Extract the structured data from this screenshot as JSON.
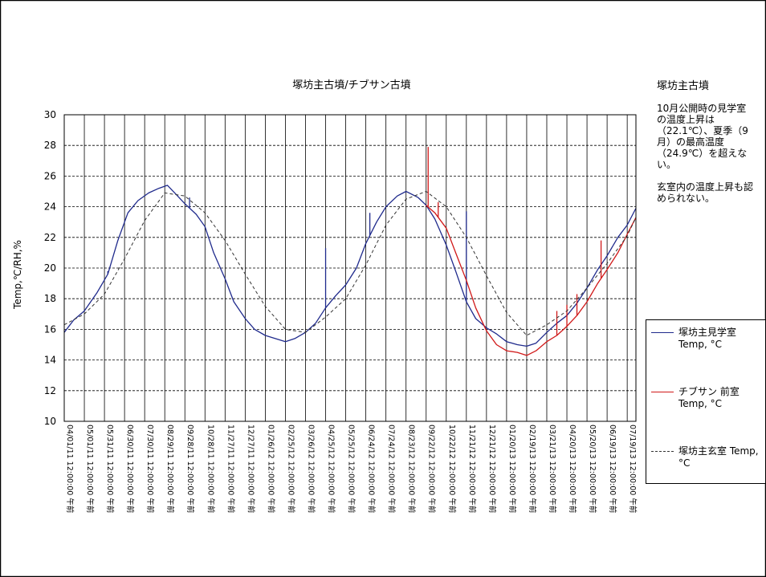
{
  "side_panel": {
    "title": "塚坊主古墳",
    "note": "10月公開時の見学室の温度上昇は（22.1℃）、夏季（9月）の最高温度（24.9℃）を超えない。\n\n玄室内の温度上昇も認められない。"
  },
  "colors": {
    "blue": "#1f2a8c",
    "red": "#d01818",
    "dashed": "#333333",
    "grid": "#000000"
  },
  "chart_data": {
    "type": "line",
    "title": "塚坊主古墳/チブサン古墳",
    "ylabel": "Temp,℃/RH,%",
    "xlabel": "",
    "ylim": [
      10,
      30
    ],
    "yticks": [
      10,
      12,
      14,
      16,
      18,
      20,
      22,
      24,
      26,
      28,
      30
    ],
    "grid": true,
    "legend_position": "right",
    "xrange": [
      "2011-04-01",
      "2013-08-01"
    ],
    "xtick_labels": [
      "04/01/11 12:00:00 午前",
      "05/01/11 12:00:00 午前",
      "05/31/11 12:00:00 午前",
      "06/30/11 12:00:00 午前",
      "07/30/11 12:00:00 午前",
      "08/29/11 12:00:00 午前",
      "09/28/11 12:00:00 午前",
      "10/28/11 12:00:00 午前",
      "11/27/11 12:00:00 午前",
      "12/27/11 12:00:00 午前",
      "01/26/12 12:00:00 午前",
      "02/25/12 12:00:00 午前",
      "03/26/12 12:00:00 午前",
      "04/25/12 12:00:00 午前",
      "05/25/12 12:00:00 午前",
      "06/24/12 12:00:00 午前",
      "07/24/12 12:00:00 午前",
      "08/23/12 12:00:00 午前",
      "09/22/12 12:00:00 午前",
      "10/22/12 12:00:00 午前",
      "11/21/12 12:00:00 午前",
      "12/21/12 12:00:00 午前",
      "01/20/13 12:00:00 午前",
      "02/19/13 12:00:00 午前",
      "03/21/13 12:00:00 午前",
      "04/20/13 12:00:00 午前",
      "05/20/13 12:00:00 午前",
      "06/19/13 12:00:00 午前",
      "07/19/13 12:00:00 午前"
    ],
    "xtick_dates": [
      "2011-04-01",
      "2011-05-01",
      "2011-05-31",
      "2011-06-30",
      "2011-07-30",
      "2011-08-29",
      "2011-09-28",
      "2011-10-28",
      "2011-11-27",
      "2011-12-27",
      "2012-01-26",
      "2012-02-25",
      "2012-03-26",
      "2012-04-25",
      "2012-05-25",
      "2012-06-24",
      "2012-07-24",
      "2012-08-23",
      "2012-09-22",
      "2012-10-22",
      "2012-11-21",
      "2012-12-21",
      "2013-01-20",
      "2013-02-19",
      "2013-03-21",
      "2013-04-20",
      "2013-05-20",
      "2013-06-19",
      "2013-07-19"
    ],
    "series": [
      {
        "name": "塚坊主見学室 Temp, °C",
        "color": "#1f2a8c",
        "style": "solid",
        "x": [
          "2011-04-01",
          "2011-04-15",
          "2011-05-01",
          "2011-05-20",
          "2011-06-05",
          "2011-06-20",
          "2011-07-05",
          "2011-07-20",
          "2011-08-05",
          "2011-08-20",
          "2011-09-02",
          "2011-09-15",
          "2011-09-28",
          "2011-10-15",
          "2011-10-28",
          "2011-11-10",
          "2011-11-27",
          "2011-12-10",
          "2011-12-27",
          "2012-01-10",
          "2012-01-26",
          "2012-02-10",
          "2012-02-25",
          "2012-03-10",
          "2012-03-26",
          "2012-04-10",
          "2012-04-25",
          "2012-05-10",
          "2012-05-25",
          "2012-06-10",
          "2012-06-24",
          "2012-07-10",
          "2012-07-24",
          "2012-08-10",
          "2012-08-23",
          "2012-09-10",
          "2012-09-22",
          "2012-10-05",
          "2012-10-22",
          "2012-11-05",
          "2012-11-21",
          "2012-12-05",
          "2012-12-21",
          "2013-01-05",
          "2013-01-20",
          "2013-02-05",
          "2013-02-19",
          "2013-03-05",
          "2013-03-21",
          "2013-04-05",
          "2013-04-20",
          "2013-05-05",
          "2013-05-20",
          "2013-06-05",
          "2013-06-19",
          "2013-07-05",
          "2013-07-19",
          "2013-08-01"
        ],
        "values": [
          15.8,
          16.6,
          17.2,
          18.4,
          19.6,
          21.8,
          23.6,
          24.4,
          24.9,
          25.2,
          25.4,
          24.8,
          24.2,
          23.5,
          22.7,
          21.0,
          19.3,
          17.8,
          16.7,
          16.0,
          15.6,
          15.4,
          15.2,
          15.4,
          15.8,
          16.4,
          17.4,
          18.2,
          18.9,
          20.0,
          21.6,
          23.0,
          24.0,
          24.7,
          25.0,
          24.6,
          24.1,
          23.2,
          21.5,
          19.8,
          17.8,
          16.7,
          16.1,
          15.7,
          15.2,
          15.0,
          14.9,
          15.1,
          15.8,
          16.4,
          16.9,
          17.7,
          18.7,
          19.9,
          20.8,
          22.0,
          22.8,
          23.9
        ],
        "spikes": [
          [
            "2011-06-05",
            19.8
          ],
          [
            "2011-10-05",
            24.6
          ],
          [
            "2012-04-25",
            21.3
          ],
          [
            "2012-06-30",
            23.6
          ],
          [
            "2012-11-21",
            23.7
          ]
        ]
      },
      {
        "name": "チブサン 前室 Temp, °C",
        "color": "#d01818",
        "style": "solid",
        "x": [
          "2012-09-22",
          "2012-10-05",
          "2012-10-22",
          "2012-11-05",
          "2012-11-21",
          "2012-12-05",
          "2012-12-21",
          "2013-01-05",
          "2013-01-20",
          "2013-02-05",
          "2013-02-19",
          "2013-03-05",
          "2013-03-21",
          "2013-04-05",
          "2013-04-20",
          "2013-05-05",
          "2013-05-20",
          "2013-06-05",
          "2013-06-19",
          "2013-07-05",
          "2013-07-19",
          "2013-08-01"
        ],
        "values": [
          24.1,
          23.6,
          22.6,
          21.0,
          19.2,
          17.4,
          15.9,
          15.0,
          14.6,
          14.5,
          14.3,
          14.6,
          15.2,
          15.6,
          16.2,
          16.9,
          17.8,
          19.0,
          19.9,
          21.0,
          22.2,
          23.3
        ],
        "spikes": [
          [
            "2012-09-25",
            27.9
          ],
          [
            "2012-10-10",
            24.3
          ],
          [
            "2013-04-05",
            17.2
          ],
          [
            "2013-04-20",
            17.6
          ],
          [
            "2013-05-05",
            18.3
          ],
          [
            "2013-06-10",
            21.8
          ]
        ]
      },
      {
        "name": "塚坊主玄室 Temp, °C",
        "color": "#333333",
        "style": "dashed",
        "x": [
          "2011-04-01",
          "2011-05-01",
          "2011-05-31",
          "2011-06-30",
          "2011-07-30",
          "2011-08-29",
          "2011-09-28",
          "2011-10-28",
          "2011-11-27",
          "2011-12-27",
          "2012-01-26",
          "2012-02-25",
          "2012-03-26",
          "2012-04-25",
          "2012-05-25",
          "2012-06-24",
          "2012-07-24",
          "2012-08-23",
          "2012-09-22",
          "2012-10-22",
          "2012-11-21",
          "2012-12-21",
          "2013-01-20",
          "2013-02-19",
          "2013-03-21",
          "2013-04-20",
          "2013-05-20",
          "2013-06-19",
          "2013-07-19",
          "2013-08-01"
        ],
        "values": [
          16.3,
          17.0,
          18.3,
          20.6,
          23.1,
          24.9,
          24.7,
          23.6,
          21.8,
          19.6,
          17.5,
          16.0,
          15.8,
          16.8,
          18.0,
          20.2,
          22.8,
          24.5,
          25.0,
          24.0,
          22.0,
          19.5,
          17.1,
          15.6,
          16.3,
          17.2,
          18.7,
          20.3,
          22.1,
          23.3
        ]
      }
    ]
  }
}
